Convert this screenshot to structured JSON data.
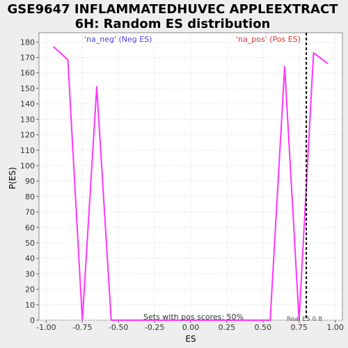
{
  "chart_data": {
    "type": "line",
    "title_line1": "GSE9647 INFLAMMATEDHUVEC APPLEEXTRACT",
    "title_line2": "6H: Random ES distribution",
    "xlabel": "ES",
    "ylabel": "P(ES)",
    "xlim": [
      -1.05,
      1.05
    ],
    "ylim": [
      0,
      186
    ],
    "xticks": [
      -1.0,
      -0.75,
      -0.5,
      -0.25,
      0.0,
      0.25,
      0.5,
      0.75,
      1.0
    ],
    "xtick_labels": [
      "-1.00",
      "-0.75",
      "-0.50",
      "-0.25",
      "0.00",
      "0.25",
      "0.50",
      "0.75",
      "1.00"
    ],
    "yticks": [
      0,
      10,
      20,
      30,
      40,
      50,
      60,
      70,
      80,
      90,
      100,
      110,
      120,
      130,
      140,
      150,
      160,
      170,
      180
    ],
    "ytick_labels": [
      "0",
      "10",
      "20",
      "30",
      "40",
      "50",
      "60",
      "70",
      "80",
      "90",
      "100",
      "110",
      "120",
      "130",
      "140",
      "150",
      "160",
      "170",
      "180"
    ],
    "grid": true,
    "series": [
      {
        "color": "#ff33ff",
        "x": [
          -0.95,
          -0.85,
          -0.75,
          -0.65,
          -0.55,
          0.55,
          0.65,
          0.75,
          0.85,
          0.95
        ],
        "y": [
          177,
          168.5,
          0,
          151,
          0,
          0,
          164,
          0,
          173,
          166
        ]
      }
    ],
    "real_es": 0.8,
    "real_es_color": "#000000",
    "annotations": {
      "neg_label": "'na_neg' (Neg ES)",
      "neg_color": "#4444dd",
      "pos_label": "'na_pos' (Pos ES)",
      "pos_color": "#dd3333",
      "sets_label": "Sets with pos scores: 50%",
      "real_es_label": "Real ES 0.8"
    },
    "background": "#ffffff",
    "page_background": "#eeeeee",
    "grid_color": "#e4e4e4"
  }
}
